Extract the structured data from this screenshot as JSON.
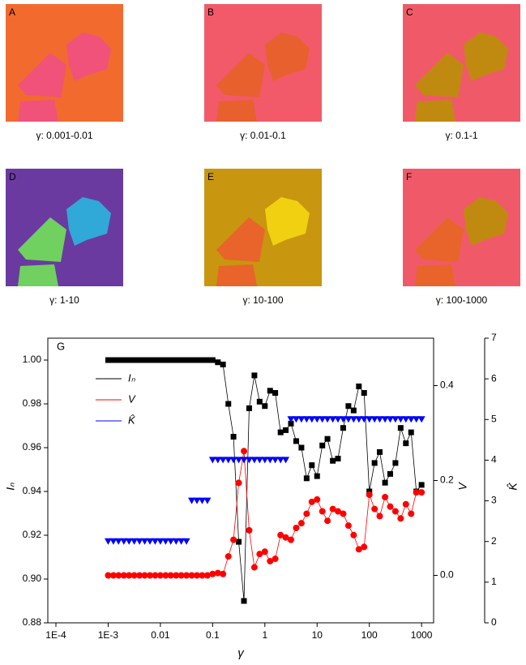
{
  "panels": [
    {
      "label": "A",
      "caption": "γ: 0.001-0.01"
    },
    {
      "label": "B",
      "caption": "γ: 0.01-0.1"
    },
    {
      "label": "C",
      "caption": "γ: 0.1-1"
    },
    {
      "label": "D",
      "caption": "γ: 1-10"
    },
    {
      "label": "E",
      "caption": "γ: 10-100"
    },
    {
      "label": "F",
      "caption": "γ: 100-1000"
    }
  ],
  "chart_data": {
    "type": "line",
    "panel_label": "G",
    "x_label": "γ",
    "y_label": "Iₙ",
    "y2_label": "V",
    "y3_label": "K̂",
    "log_x": true,
    "xlim": [
      7e-05,
      1700
    ],
    "xticks": [
      {
        "value": 0.0001,
        "label": "1E-4"
      },
      {
        "value": 0.001,
        "label": "1E-3"
      },
      0.01,
      0.1,
      1,
      10,
      100,
      1000
    ],
    "ylim": [
      0.88,
      1.01
    ],
    "yticks": [
      0.88,
      {
        "value": 0.9,
        "label": "0.90"
      },
      0.92,
      0.94,
      0.96,
      0.98,
      {
        "value": 1.0,
        "label": "1.00"
      }
    ],
    "y2lim": [
      -0.1,
      0.5
    ],
    "y2ticks": [
      {
        "value": 0,
        "label": "0.0"
      },
      0.2,
      0.4
    ],
    "y3lim": [
      0,
      7
    ],
    "y3ticks": [
      0,
      1,
      2,
      3,
      4,
      5,
      6,
      7
    ],
    "x": [
      0.001,
      0.00126,
      0.00158,
      0.002,
      0.00251,
      0.00316,
      0.00398,
      0.00501,
      0.00631,
      0.00794,
      0.01,
      0.0126,
      0.0158,
      0.02,
      0.0251,
      0.0316,
      0.0398,
      0.0501,
      0.0631,
      0.0794,
      0.1,
      0.126,
      0.158,
      0.2,
      0.251,
      0.316,
      0.398,
      0.501,
      0.631,
      0.794,
      1,
      1.26,
      1.58,
      2,
      2.51,
      3.16,
      3.98,
      5.01,
      6.31,
      7.94,
      10,
      12.6,
      15.8,
      20,
      25.1,
      31.6,
      39.8,
      50.1,
      63.1,
      79.4,
      100,
      126,
      158,
      200,
      251,
      316,
      398,
      501,
      631,
      794,
      1000
    ],
    "series": [
      {
        "name": "Iₙ",
        "color": "#000000",
        "axis": "y",
        "marker": "square",
        "line": true,
        "values": [
          1,
          1,
          1,
          1,
          1,
          1,
          1,
          1,
          1,
          1,
          1,
          1,
          1,
          1,
          1,
          1,
          1,
          1,
          1,
          1,
          1,
          0.999,
          0.998,
          0.98,
          0.965,
          0.917,
          0.89,
          0.978,
          0.993,
          0.981,
          0.979,
          0.986,
          0.985,
          0.967,
          0.968,
          0.971,
          0.963,
          0.96,
          0.946,
          0.952,
          0.947,
          0.961,
          0.964,
          0.954,
          0.955,
          0.969,
          0.979,
          0.977,
          0.988,
          0.985,
          0.94,
          0.953,
          0.958,
          0.944,
          0.948,
          0.953,
          0.969,
          0.962,
          0.967,
          0.94,
          0.943
        ]
      },
      {
        "name": "V",
        "color": "#ff0000",
        "axis": "y2",
        "marker": "circle",
        "line": true,
        "values": [
          0,
          0,
          0,
          0,
          0,
          0,
          0,
          0,
          0,
          0,
          0,
          0,
          0,
          0,
          0,
          0,
          0,
          0,
          0,
          0,
          0.003,
          0.005,
          0.003,
          0.04,
          0.075,
          0.195,
          0.262,
          0.095,
          0.017,
          0.045,
          0.05,
          0.03,
          0.035,
          0.085,
          0.08,
          0.075,
          0.1,
          0.11,
          0.13,
          0.155,
          0.16,
          0.135,
          0.115,
          0.14,
          0.135,
          0.13,
          0.105,
          0.085,
          0.055,
          0.06,
          0.17,
          0.14,
          0.125,
          0.165,
          0.145,
          0.135,
          0.12,
          0.15,
          0.13,
          0.175,
          0.175
        ]
      },
      {
        "name": "K̂",
        "color": "#0000ff",
        "axis": "y3",
        "marker": "triangle-down",
        "line": false,
        "values": [
          2,
          2,
          2,
          2,
          2,
          2,
          2,
          2,
          2,
          2,
          2,
          2,
          2,
          2,
          2,
          2,
          3,
          3,
          3,
          3,
          4,
          4,
          4,
          4,
          4,
          4,
          4,
          4,
          4,
          4,
          4,
          4,
          4,
          4,
          4,
          5,
          5,
          5,
          5,
          5,
          5,
          5,
          5,
          5,
          5,
          5,
          5,
          5,
          5,
          5,
          5,
          5,
          5,
          5,
          5,
          5,
          5,
          5,
          5,
          5,
          5
        ]
      }
    ]
  }
}
